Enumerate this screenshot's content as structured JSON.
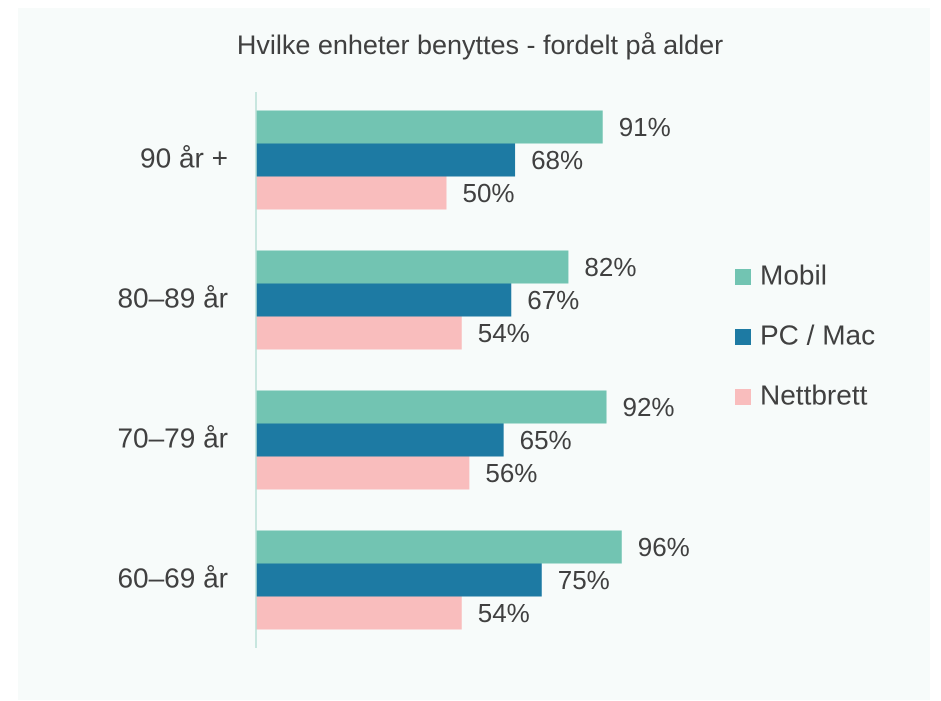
{
  "chart_data": {
    "type": "hbar",
    "title": "Hvilke enheter benyttes - fordelt på alder",
    "categories": [
      "90 år +",
      "80–89 år",
      "70–79 år",
      "60–69 år"
    ],
    "series": [
      {
        "name": "Mobil",
        "color": "#72c4b2",
        "values": [
          91,
          82,
          92,
          96
        ],
        "value_labels": [
          "91%",
          "82%",
          "92%",
          "96%"
        ]
      },
      {
        "name": "PC / Mac",
        "color": "#1d7aa3",
        "values": [
          68,
          67,
          65,
          75
        ],
        "value_labels": [
          "68%",
          "67%",
          "65%",
          "75%"
        ]
      },
      {
        "name": "Nettbrett",
        "color": "#f9bdbd",
        "values": [
          50,
          54,
          56,
          54
        ],
        "value_labels": [
          "50%",
          "54%",
          "56%",
          "54%"
        ]
      }
    ],
    "xlim": [
      0,
      100
    ],
    "legend": "right"
  }
}
